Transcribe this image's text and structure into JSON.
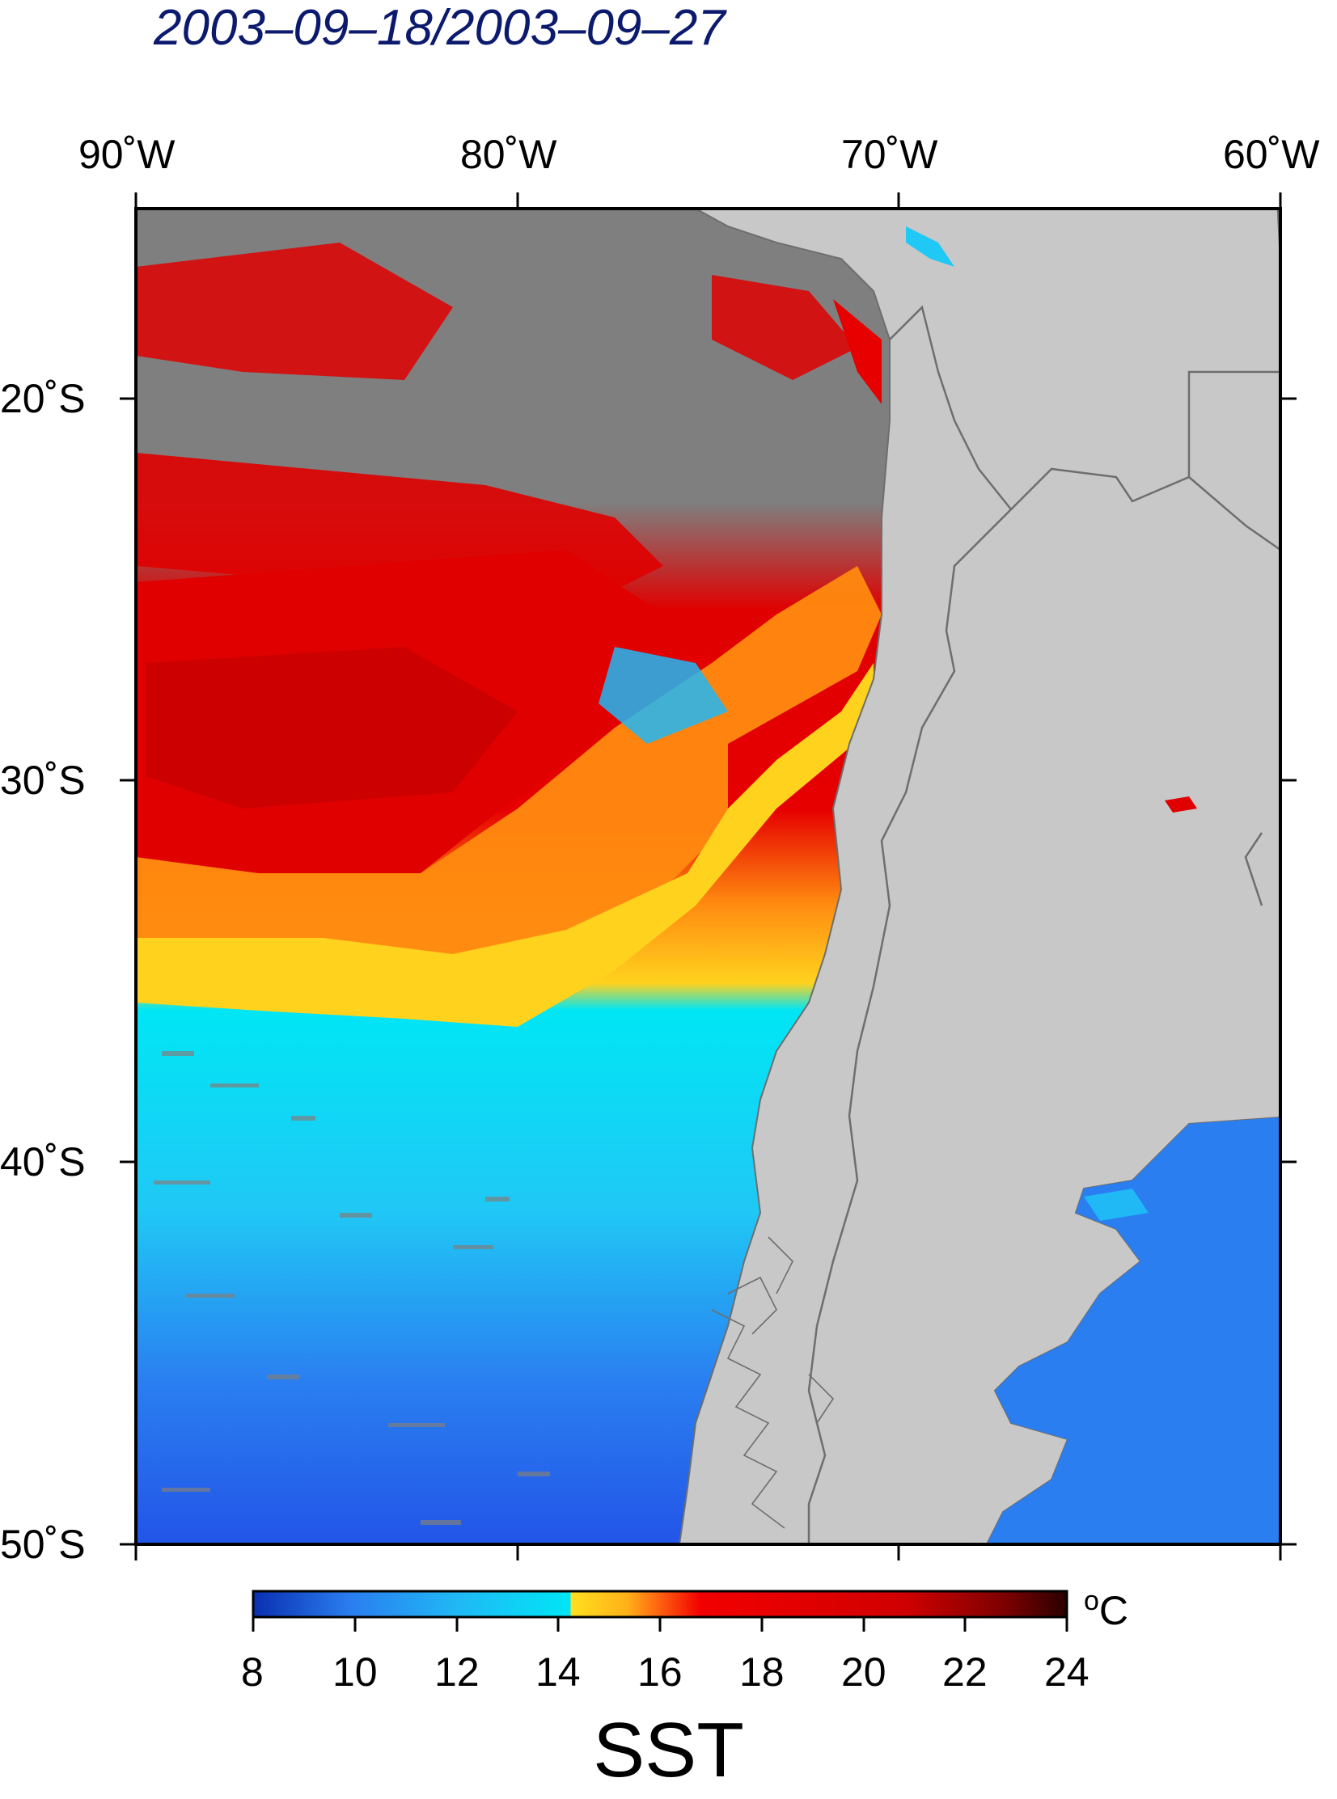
{
  "title": "2003–09–18/2003–09–27",
  "variable": "SST",
  "unit": {
    "prefix": "o",
    "label": "C"
  },
  "lon_labels": [
    "90˚W",
    "80˚W",
    "70˚W",
    "60˚W"
  ],
  "lat_labels": [
    "20˚S",
    "30˚S",
    "40˚S",
    "50˚S"
  ],
  "colorbar": {
    "min": 8,
    "max": 24,
    "ticks": [
      "8",
      "10",
      "12",
      "14",
      "16",
      "18",
      "20",
      "22",
      "24"
    ],
    "colors": {
      "deep_blue": "#1a4fd8",
      "blue": "#2a7ef0",
      "cyan": "#00e6f5",
      "yellow": "#ffd21e",
      "orange": "#ff8a10",
      "red": "#f20000",
      "dark_red": "#b00000",
      "black": "#1a0000"
    }
  },
  "map": {
    "lon_range": [
      -90,
      -60
    ],
    "lat_range": [
      -50,
      -15
    ],
    "land_color": "#c8c8c8",
    "nodata_color": "#7f7f7f"
  }
}
